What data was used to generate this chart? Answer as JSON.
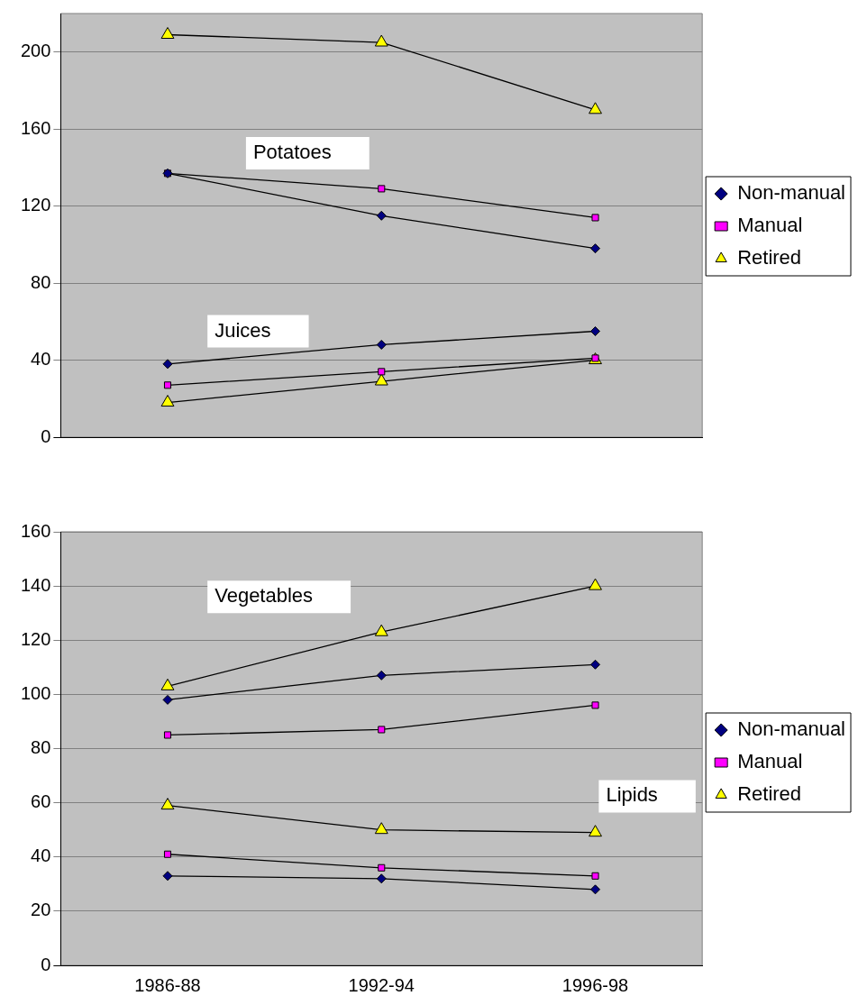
{
  "chart_data": [
    {
      "type": "line",
      "categories": [
        "1986-88",
        "1992-94",
        "1996-98"
      ],
      "tick_labels": "y",
      "ylim": [
        0,
        220
      ],
      "yticks": [
        0,
        40,
        80,
        120,
        160,
        200
      ],
      "grid": "y",
      "legend": "right",
      "line_style": "solid",
      "annotations": [
        "Potatoes",
        "Juices"
      ],
      "series": [
        {
          "name": "Non-manual",
          "color": "#000080",
          "marker": "diamond",
          "values": [
            137,
            115,
            98
          ]
        },
        {
          "name": "Manual",
          "color": "#ff00ff",
          "marker": "square",
          "values": [
            137,
            129,
            114
          ]
        },
        {
          "name": "Retired",
          "color": "#ffff00",
          "marker": "triangle",
          "values": [
            209,
            205,
            170
          ]
        },
        {
          "color": "#000080",
          "marker": "diamond",
          "values": [
            38,
            48,
            55
          ]
        },
        {
          "color": "#ff00ff",
          "marker": "square",
          "values": [
            27,
            34,
            41
          ]
        },
        {
          "color": "#ffff00",
          "marker": "triangle",
          "values": [
            18,
            29,
            40
          ]
        }
      ]
    },
    {
      "type": "line",
      "categories": [
        "1986-88",
        "1992-94",
        "1996-98"
      ],
      "ylim": [
        0,
        160
      ],
      "yticks": [
        0,
        20,
        40,
        60,
        80,
        100,
        120,
        140,
        160
      ],
      "grid": "y",
      "legend": "right",
      "line_style": "solid",
      "annotations": [
        "Vegetables",
        "Lipids"
      ],
      "series": [
        {
          "name": "Non-manual",
          "color": "#000080",
          "marker": "diamond",
          "values": [
            98,
            107,
            111
          ]
        },
        {
          "name": "Manual",
          "color": "#ff00ff",
          "marker": "square",
          "values": [
            85,
            87,
            96
          ]
        },
        {
          "name": "Retired",
          "color": "#ffff00",
          "marker": "triangle",
          "values": [
            103,
            123,
            140
          ]
        },
        {
          "color": "#000080",
          "marker": "diamond",
          "values": [
            33,
            32,
            28
          ]
        },
        {
          "color": "#ff00ff",
          "marker": "square",
          "values": [
            41,
            36,
            33
          ]
        },
        {
          "color": "#ffff00",
          "marker": "triangle",
          "values": [
            59,
            50,
            49
          ]
        }
      ]
    }
  ]
}
